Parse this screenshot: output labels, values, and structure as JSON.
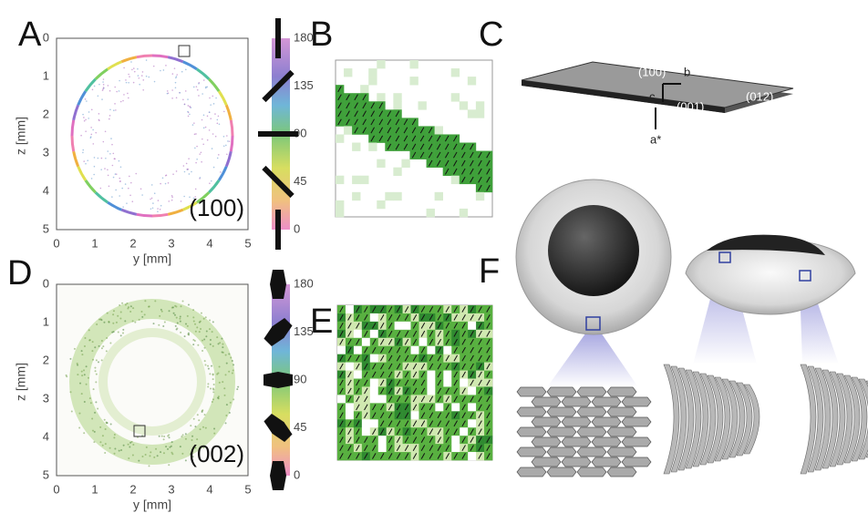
{
  "panel_letters": [
    "A",
    "B",
    "C",
    "D",
    "E",
    "F"
  ],
  "plot_A": {
    "x_ticks": [
      0,
      1,
      2,
      3,
      4,
      5
    ],
    "z_ticks": [
      0,
      1,
      2,
      3,
      4,
      5
    ],
    "x_label": "y [mm]",
    "z_label": "z [mm]",
    "colorbar_ticks": [
      180,
      135,
      90,
      45,
      0
    ],
    "reflection": "(100)"
  },
  "plot_D": {
    "x_ticks": [
      0,
      1,
      2,
      3,
      4,
      5
    ],
    "z_ticks": [
      0,
      1,
      2,
      3,
      4,
      5
    ],
    "x_label": "y [mm]",
    "z_label": "z [mm]",
    "colorbar_ticks": [
      180,
      135,
      90,
      45,
      0
    ],
    "reflection": "(002)"
  },
  "crystal": {
    "face_top": "(100)",
    "axis_b": "b",
    "axis_c": "c",
    "face_front": "(001)",
    "face_side": "(012)",
    "axis_a": "a*"
  }
}
